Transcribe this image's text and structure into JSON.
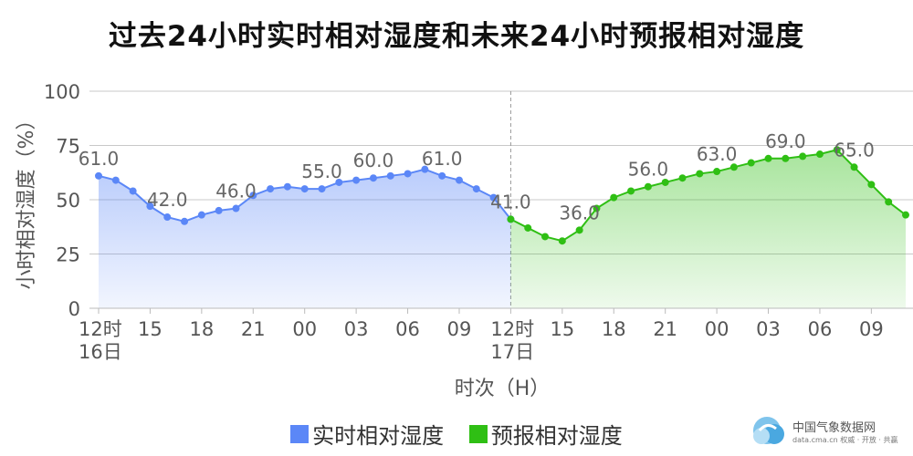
{
  "chart_data": {
    "type": "line",
    "title": "过去24小时实时相对湿度和未来24小时预报相对湿度",
    "ylabel": "小时相对湿度（%）",
    "xlabel": "时次（H）",
    "ylim": [
      0,
      100
    ],
    "yticks": [
      0,
      25,
      50,
      75,
      100
    ],
    "xticks": [
      {
        "x": 0,
        "label": "12时",
        "sub": "16日"
      },
      {
        "x": 3,
        "label": "15"
      },
      {
        "x": 6,
        "label": "18"
      },
      {
        "x": 9,
        "label": "21"
      },
      {
        "x": 12,
        "label": "00"
      },
      {
        "x": 15,
        "label": "03"
      },
      {
        "x": 18,
        "label": "06"
      },
      {
        "x": 21,
        "label": "09"
      },
      {
        "x": 24,
        "label": "12时",
        "sub": "17日"
      },
      {
        "x": 27,
        "label": "15"
      },
      {
        "x": 30,
        "label": "18"
      },
      {
        "x": 33,
        "label": "21"
      },
      {
        "x": 36,
        "label": "00"
      },
      {
        "x": 39,
        "label": "03"
      },
      {
        "x": 42,
        "label": "06"
      },
      {
        "x": 45,
        "label": "09"
      }
    ],
    "grid": true,
    "legend_position": "bottom",
    "series": [
      {
        "name": "实时相对湿度",
        "color": "#5b87f7",
        "values": [
          61,
          59,
          54,
          47,
          42,
          40,
          43,
          45,
          46,
          52,
          55,
          56,
          55,
          55,
          58,
          59,
          60,
          61,
          62,
          64,
          61,
          59,
          55,
          51,
          41
        ],
        "labels": [
          {
            "i": 0,
            "text": "61.0"
          },
          {
            "i": 4,
            "text": "42.0"
          },
          {
            "i": 8,
            "text": "46.0"
          },
          {
            "i": 13,
            "text": "55.0"
          },
          {
            "i": 16,
            "text": "60.0"
          },
          {
            "i": 20,
            "text": "61.0"
          },
          {
            "i": 24,
            "text": "41.0"
          }
        ]
      },
      {
        "name": "预报相对湿度",
        "color": "#2fbf14",
        "start": 24,
        "values": [
          41,
          37,
          33,
          31,
          36,
          46,
          51,
          54,
          56,
          58,
          60,
          62,
          63,
          65,
          67,
          69,
          69,
          70,
          71,
          73,
          65,
          57,
          49,
          43
        ],
        "labels": [
          {
            "i": 4,
            "text": "36.0"
          },
          {
            "i": 8,
            "text": "56.0"
          },
          {
            "i": 12,
            "text": "63.0"
          },
          {
            "i": 16,
            "text": "69.0"
          },
          {
            "i": 20,
            "text": "65.0"
          }
        ]
      }
    ]
  },
  "legend": {
    "observed": "实时相对湿度",
    "forecast": "预报相对湿度"
  },
  "logo": {
    "name": "中国气象数据网",
    "sub": "data.cma.cn 权威 · 开放 · 共赢"
  }
}
